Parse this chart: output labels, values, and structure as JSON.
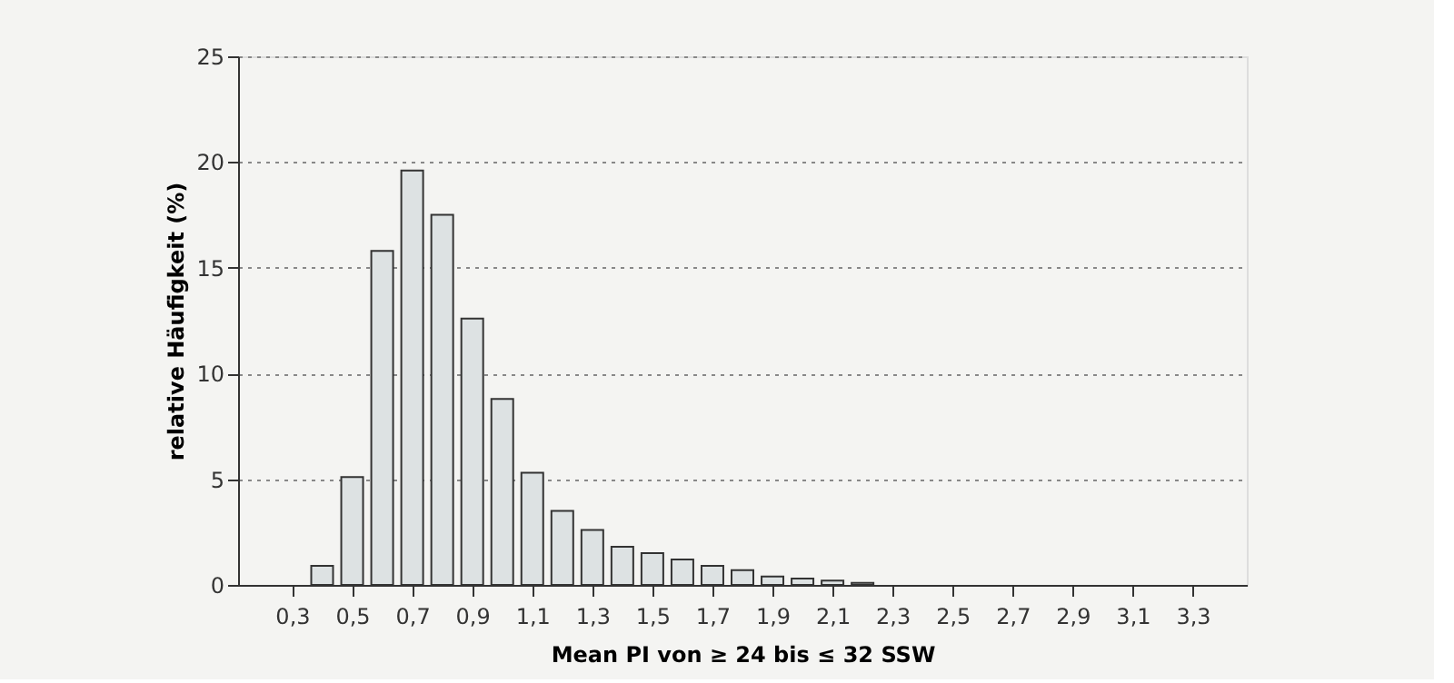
{
  "chart_data": {
    "type": "bar",
    "xlabel": "Mean PI von ≥ 24 bis ≤ 32 SSW",
    "ylabel": "relative Häufigkeit (%)",
    "x": [
      0.4,
      0.5,
      0.6,
      0.7,
      0.8,
      0.9,
      1.0,
      1.1,
      1.2,
      1.3,
      1.4,
      1.5,
      1.6,
      1.7,
      1.8,
      1.9,
      2.0,
      2.1,
      2.2
    ],
    "values": [
      0.9,
      5.1,
      15.8,
      19.6,
      17.5,
      12.6,
      8.8,
      5.3,
      3.5,
      2.6,
      1.8,
      1.5,
      1.2,
      0.9,
      0.7,
      0.4,
      0.3,
      0.2,
      0.1
    ],
    "color": "#dde2e3",
    "xlim": [
      0.12,
      3.48
    ],
    "xticks": [
      {
        "value": 0.3,
        "label": "0,3"
      },
      {
        "value": 0.5,
        "label": "0,5"
      },
      {
        "value": 0.7,
        "label": "0,7"
      },
      {
        "value": 0.9,
        "label": "0,9"
      },
      {
        "value": 1.1,
        "label": "1,1"
      },
      {
        "value": 1.3,
        "label": "1,3"
      },
      {
        "value": 1.5,
        "label": "1,5"
      },
      {
        "value": 1.7,
        "label": "1,7"
      },
      {
        "value": 1.9,
        "label": "1,9"
      },
      {
        "value": 2.1,
        "label": "2,1"
      },
      {
        "value": 2.3,
        "label": "2,3"
      },
      {
        "value": 2.5,
        "label": "2,5"
      },
      {
        "value": 2.7,
        "label": "2,7"
      },
      {
        "value": 2.9,
        "label": "2,9"
      },
      {
        "value": 3.1,
        "label": "3,1"
      },
      {
        "value": 3.3,
        "label": "3,3"
      }
    ],
    "ylim": [
      0,
      25
    ],
    "yticks": [
      0,
      5,
      10,
      15,
      20,
      25
    ],
    "grid": "y"
  }
}
